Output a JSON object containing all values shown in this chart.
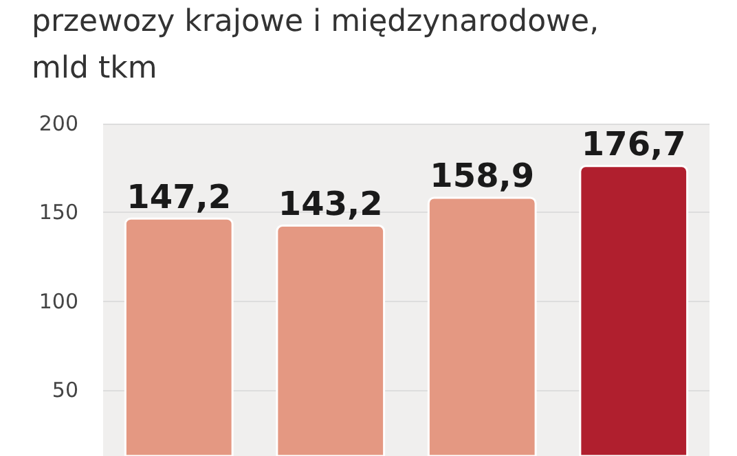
{
  "chart_data": {
    "type": "bar",
    "title": "przewozy krajowe i międzynarodowe,",
    "subtitle": "mld tkm",
    "categories": [
      null,
      null,
      null,
      null
    ],
    "values": [
      147.2,
      143.2,
      158.9,
      176.7
    ],
    "colors": [
      "#e49882",
      "#e49882",
      "#e49882",
      "#b01f2e"
    ],
    "value_labels": [
      "147,2",
      "143,2",
      "158,9",
      "176,7"
    ],
    "ylim": [
      13,
      200
    ],
    "yticks": [
      50,
      100,
      150,
      200
    ],
    "grid": "y",
    "tick_labels": "y"
  }
}
